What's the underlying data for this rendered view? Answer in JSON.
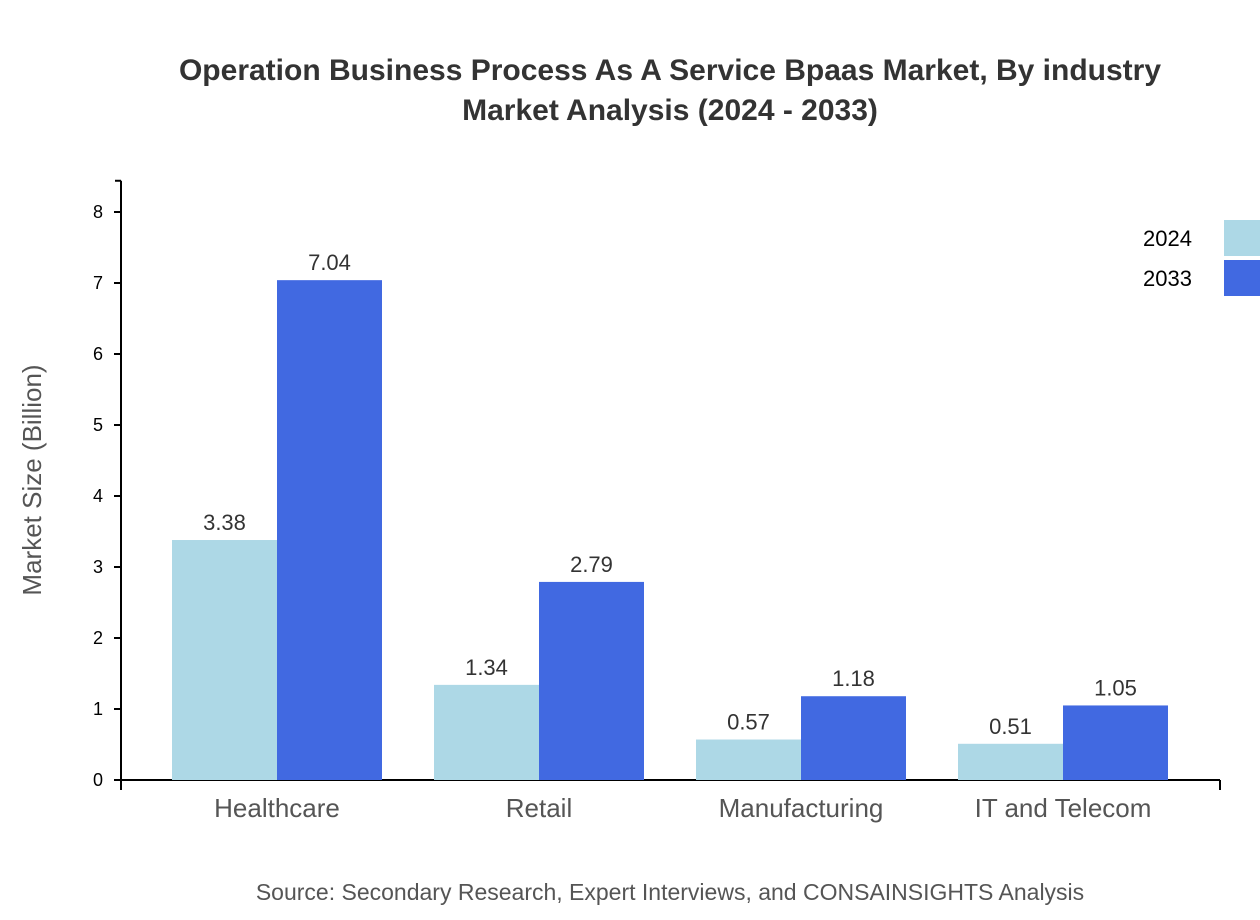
{
  "chart_data": {
    "type": "bar",
    "title_line1": "Operation Business Process As A Service Bpaas Market, By industry",
    "title_line2": "Market Analysis (2024 - 2033)",
    "xlabel": "",
    "ylabel": "Market Size (Billion)",
    "ylim": [
      0,
      8.44
    ],
    "yticks": [
      "0",
      "1",
      "2",
      "3",
      "4",
      "5",
      "6",
      "7",
      "8"
    ],
    "categories": [
      "Healthcare",
      "Retail",
      "Manufacturing",
      "IT and Telecom"
    ],
    "series": [
      {
        "name": "2024",
        "color": "#add8e6",
        "values": [
          3.38,
          1.34,
          0.57,
          0.51
        ],
        "labels": [
          "3.38",
          "1.34",
          "0.57",
          "0.51"
        ]
      },
      {
        "name": "2033",
        "color": "#4169e1",
        "values": [
          7.04,
          2.79,
          1.18,
          1.05
        ],
        "labels": [
          "7.04",
          "2.79",
          "1.18",
          "1.05"
        ]
      }
    ],
    "legend_position": "top-right",
    "grid": false,
    "source": "Source: Secondary Research, Expert Interviews, and CONSAINSIGHTS Analysis"
  }
}
